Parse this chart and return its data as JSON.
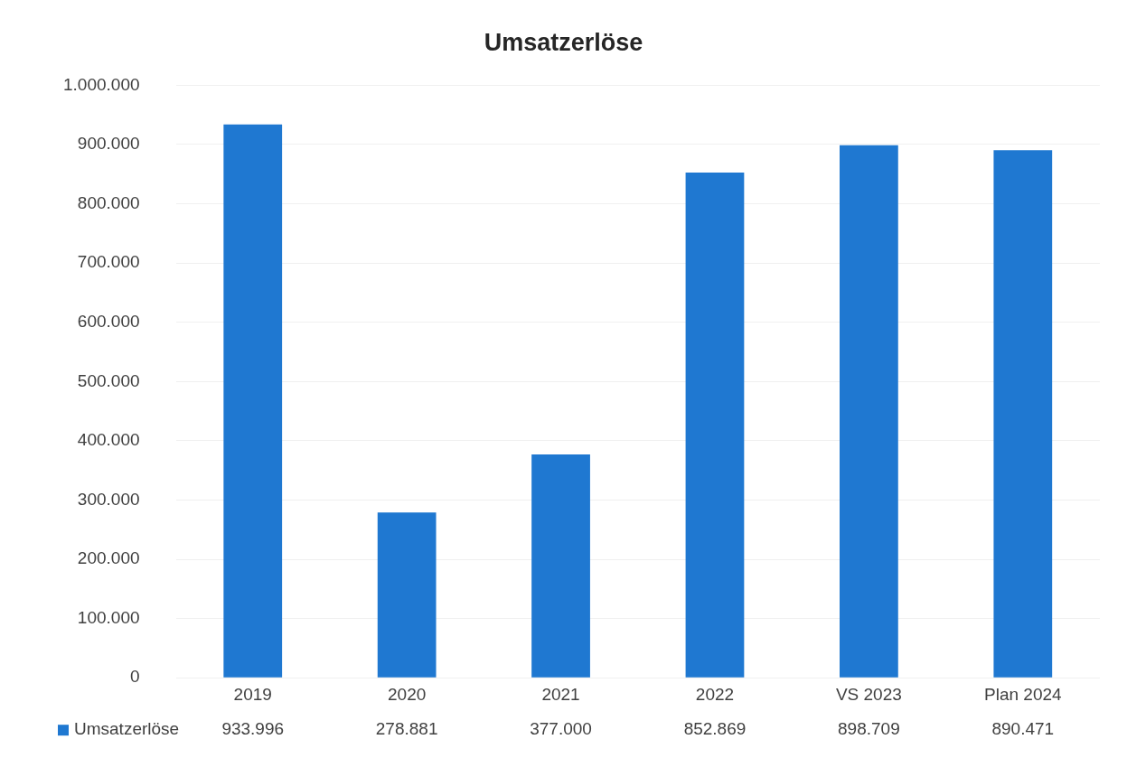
{
  "chart_data": {
    "type": "bar",
    "title": "Umsatzerlöse",
    "categories": [
      "2019",
      "2020",
      "2021",
      "2022",
      "VS 2023",
      "Plan 2024"
    ],
    "series": [
      {
        "name": "Umsatzerlöse",
        "color": "#1f78d1",
        "values": [
          933996,
          278881,
          377000,
          852869,
          898709,
          890471
        ],
        "value_labels": [
          "933.996",
          "278.881",
          "377.000",
          "852.869",
          "898.709",
          "890.471"
        ]
      }
    ],
    "ylim": [
      0,
      1000000
    ],
    "yticks": [
      {
        "value": 0,
        "label": "0"
      },
      {
        "value": 100000,
        "label": "100.000"
      },
      {
        "value": 200000,
        "label": "200.000"
      },
      {
        "value": 300000,
        "label": "300.000"
      },
      {
        "value": 400000,
        "label": "400.000"
      },
      {
        "value": 500000,
        "label": "500.000"
      },
      {
        "value": 600000,
        "label": "600.000"
      },
      {
        "value": 700000,
        "label": "700.000"
      },
      {
        "value": 800000,
        "label": "800.000"
      },
      {
        "value": 900000,
        "label": "900.000"
      },
      {
        "value": 1000000,
        "label": "1.000.000"
      }
    ],
    "grid": "y",
    "legend": "bottom",
    "data_labels": true
  }
}
